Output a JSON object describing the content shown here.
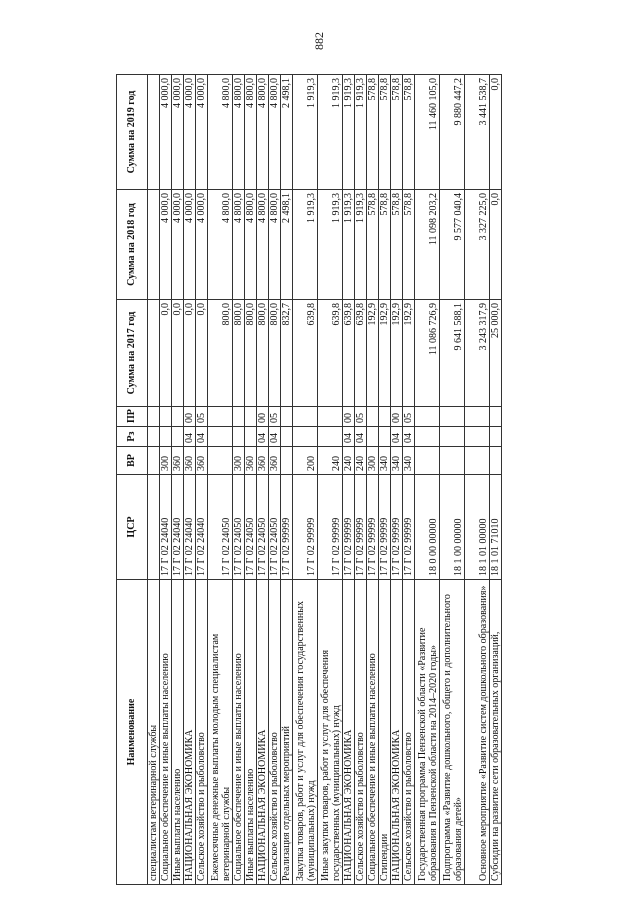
{
  "page_number": "882",
  "headers": [
    "Наименование",
    "ЦСР",
    "ВР",
    "Рз",
    "ПР",
    "Сумма на 2017 год",
    "Сумма на 2018 год",
    "Сумма на 2019 год"
  ],
  "rows": [
    [
      "специалистам ветеринарной службы",
      "",
      "",
      "",
      "",
      "",
      "",
      ""
    ],
    [
      "Социальное обеспечение и иные выплаты населению",
      "17 Г 02 24040",
      "300",
      "",
      "",
      "0,0",
      "4 000,0",
      "4 000,0"
    ],
    [
      "Иные выплаты населению",
      "17 Г 02 24040",
      "360",
      "",
      "",
      "0,0",
      "4 000,0",
      "4 000,0"
    ],
    [
      "НАЦИОНАЛЬНАЯ ЭКОНОМИКА",
      "17 Г 02 24040",
      "360",
      "04",
      "00",
      "0,0",
      "4 000,0",
      "4 000,0"
    ],
    [
      "Сельское хозяйство и рыболовство",
      "17 Г 02 24040",
      "360",
      "04",
      "05",
      "0,0",
      "4 000,0",
      "4 000,0"
    ],
    [
      "Ежемесячные денежные выплаты молодым специалистам ветеринарной службы",
      "17 Г 02 24050",
      "",
      "",
      "",
      "800,0",
      "4 800,0",
      "4 800,0"
    ],
    [
      "Социальное обеспечение и иные выплаты населению",
      "17 Г 02 24050",
      "300",
      "",
      "",
      "800,0",
      "4 800,0",
      "4 800,0"
    ],
    [
      "Иные выплаты населению",
      "17 Г 02 24050",
      "360",
      "",
      "",
      "800,0",
      "4 800,0",
      "4 800,0"
    ],
    [
      "НАЦИОНАЛЬНАЯ ЭКОНОМИКА",
      "17 Г 02 24050",
      "360",
      "04",
      "00",
      "800,0",
      "4 800,0",
      "4 800,0"
    ],
    [
      "Сельское хозяйство и рыболовство",
      "17 Г 02 24050",
      "360",
      "04",
      "05",
      "800,0",
      "4 800,0",
      "4 800,0"
    ],
    [
      "Реализация отдельных мероприятий",
      "17 Г 02 99999",
      "",
      "",
      "",
      "832,7",
      "2 498,1",
      "2 498,1"
    ],
    [
      "Закупка товаров, работ и услуг для обеспечения государственных (муниципальных) нужд",
      "17 Г 02 99999",
      "200",
      "",
      "",
      "639,8",
      "1 919,3",
      "1 919,3"
    ],
    [
      "Иные закупки товаров, работ и услуг для обеспечения государственных (муниципальных) нужд",
      "17 Г 02 99999",
      "240",
      "",
      "",
      "639,8",
      "1 919,3",
      "1 919,3"
    ],
    [
      "НАЦИОНАЛЬНАЯ ЭКОНОМИКА",
      "17 Г 02 99999",
      "240",
      "04",
      "00",
      "639,8",
      "1 919,3",
      "1 919,3"
    ],
    [
      "Сельское хозяйство и рыболовство",
      "17 Г 02 99999",
      "240",
      "04",
      "05",
      "639,8",
      "1 919,3",
      "1 919,3"
    ],
    [
      "Социальное обеспечение и иные выплаты населению",
      "17 Г 02 99999",
      "300",
      "",
      "",
      "192,9",
      "578,8",
      "578,8"
    ],
    [
      "Стипендии",
      "17 Г 02 99999",
      "340",
      "",
      "",
      "192,9",
      "578,8",
      "578,8"
    ],
    [
      "НАЦИОНАЛЬНАЯ ЭКОНОМИКА",
      "17 Г 02 99999",
      "340",
      "04",
      "00",
      "192,9",
      "578,8",
      "578,8"
    ],
    [
      "Сельское хозяйство и рыболовство",
      "17 Г 02 99999",
      "340",
      "04",
      "05",
      "192,9",
      "578,8",
      "578,8"
    ],
    [
      "Государственная программа Пензенской области «Развитие образования в Пензенской области на 2014–2020 годы»",
      "18 0 00 00000",
      "",
      "",
      "",
      "11 086 726,9",
      "11 098 203,2",
      "11 460 105,0"
    ],
    [
      "Подпрограмма «Развитие дошкольного, общего и дополнительного образования детей»",
      "18 1 00 00000",
      "",
      "",
      "",
      "9 641 588,1",
      "9 577 040,4",
      "9 880 447,2"
    ],
    [
      "Основное мероприятие «Развитие систем дошкольного образования»",
      "18 1 01 00000",
      "",
      "",
      "",
      "3 243 317,9",
      "3 327 225,0",
      "3 441 538,7"
    ],
    [
      "Субсидии на развитие сети образовательных организаций,",
      "18 1 01 71010",
      "",
      "",
      "",
      "25 000,0",
      "0,0",
      "0,0"
    ]
  ]
}
